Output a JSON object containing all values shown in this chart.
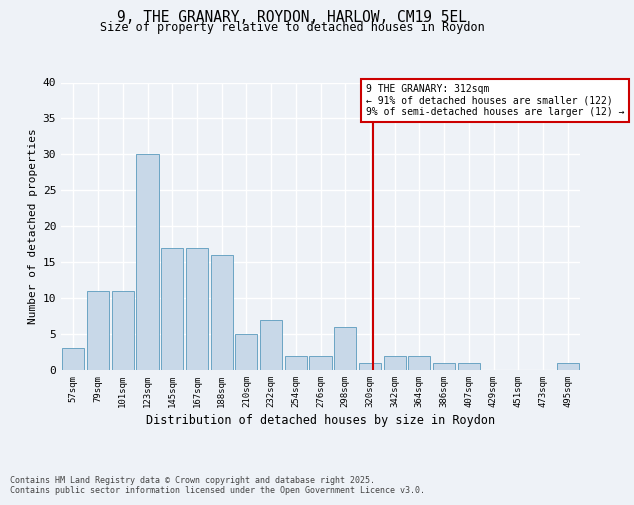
{
  "title_line1": "9, THE GRANARY, ROYDON, HARLOW, CM19 5EL",
  "title_line2": "Size of property relative to detached houses in Roydon",
  "xlabel": "Distribution of detached houses by size in Roydon",
  "ylabel": "Number of detached properties",
  "footer": "Contains HM Land Registry data © Crown copyright and database right 2025.\nContains public sector information licensed under the Open Government Licence v3.0.",
  "bar_labels": [
    "57sqm",
    "79sqm",
    "101sqm",
    "123sqm",
    "145sqm",
    "167sqm",
    "188sqm",
    "210sqm",
    "232sqm",
    "254sqm",
    "276sqm",
    "298sqm",
    "320sqm",
    "342sqm",
    "364sqm",
    "386sqm",
    "407sqm",
    "429sqm",
    "451sqm",
    "473sqm",
    "495sqm"
  ],
  "bar_values": [
    3,
    11,
    11,
    30,
    17,
    17,
    16,
    5,
    7,
    2,
    2,
    6,
    1,
    2,
    2,
    1,
    1,
    0,
    0,
    0,
    1
  ],
  "bar_color": "#c8d8e8",
  "bar_edge_color": "#5a9abd",
  "vline_color": "#cc0000",
  "annotation_title": "9 THE GRANARY: 312sqm",
  "annotation_line1": "← 91% of detached houses are smaller (122)",
  "annotation_line2": "9% of semi-detached houses are larger (12) →",
  "annotation_box_color": "#cc0000",
  "ylim": [
    0,
    40
  ],
  "yticks": [
    0,
    5,
    10,
    15,
    20,
    25,
    30,
    35,
    40
  ],
  "background_color": "#eef2f7",
  "grid_color": "#ffffff",
  "vline_position": 12.14
}
